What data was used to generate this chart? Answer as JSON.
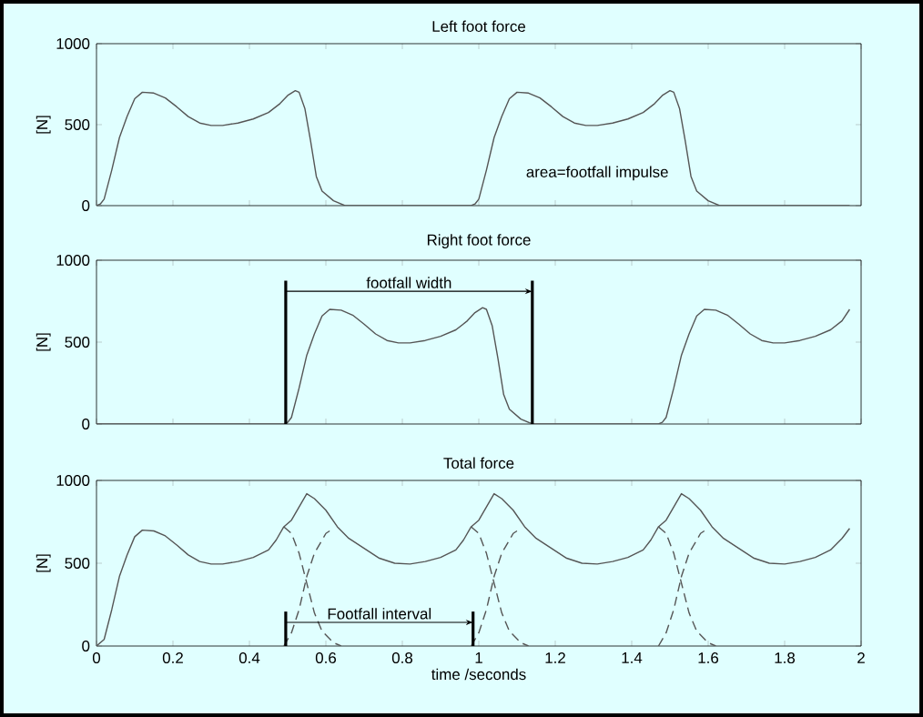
{
  "chart_data": [
    {
      "type": "line",
      "title": "Left foot force",
      "ylabel": "[N]",
      "xlim": [
        0,
        2
      ],
      "xticks": [
        0,
        0.2,
        0.4,
        0.6,
        0.8,
        1,
        1.2,
        1.4,
        1.6,
        1.8,
        2
      ],
      "ylim": [
        0,
        1000
      ],
      "yticks": [
        0,
        500,
        1000
      ],
      "tick_labels": "y",
      "grid": false,
      "annotations": [
        "area=footfall impulse"
      ],
      "series": [
        {
          "color": "#555555",
          "line_style": "solid",
          "x": [
            0,
            0.01,
            0.02,
            0.04,
            0.06,
            0.08,
            0.1,
            0.12,
            0.15,
            0.18,
            0.21,
            0.24,
            0.27,
            0.3,
            0.33,
            0.37,
            0.41,
            0.45,
            0.48,
            0.5,
            0.52,
            0.53,
            0.545,
            0.56,
            0.575,
            0.59,
            0.62,
            0.65,
            0.98,
            0.99,
            1.0,
            1.02,
            1.04,
            1.06,
            1.08,
            1.1,
            1.13,
            1.16,
            1.19,
            1.22,
            1.25,
            1.28,
            1.31,
            1.35,
            1.39,
            1.43,
            1.46,
            1.48,
            1.5,
            1.51,
            1.525,
            1.54,
            1.555,
            1.57,
            1.6,
            1.63,
            1.97
          ],
          "values": [
            0,
            10,
            40,
            220,
            420,
            550,
            660,
            700,
            695,
            665,
            610,
            550,
            510,
            495,
            495,
            510,
            535,
            575,
            630,
            680,
            710,
            700,
            600,
            400,
            180,
            90,
            30,
            0,
            0,
            10,
            40,
            220,
            420,
            550,
            660,
            700,
            695,
            665,
            610,
            550,
            510,
            495,
            495,
            510,
            535,
            575,
            630,
            680,
            710,
            700,
            600,
            400,
            180,
            90,
            30,
            0,
            0
          ]
        }
      ]
    },
    {
      "type": "line",
      "title": "Right foot force",
      "ylabel": "[N]",
      "xlim": [
        0,
        2
      ],
      "xticks": [
        0,
        0.2,
        0.4,
        0.6,
        0.8,
        1,
        1.2,
        1.4,
        1.6,
        1.8,
        2
      ],
      "ylim": [
        0,
        1000
      ],
      "yticks": [
        0,
        500,
        1000
      ],
      "tick_labels": "y",
      "grid": false,
      "annotations": [
        "footfall width"
      ],
      "ref_lines": [
        {
          "axis": "x",
          "value": 0.495,
          "color": "#000000"
        },
        {
          "axis": "x",
          "value": 1.14,
          "color": "#000000"
        }
      ],
      "series": [
        {
          "color": "#555555",
          "line_style": "solid",
          "x": [
            0,
            0.49,
            0.5,
            0.51,
            0.53,
            0.55,
            0.57,
            0.59,
            0.61,
            0.64,
            0.67,
            0.7,
            0.73,
            0.76,
            0.79,
            0.82,
            0.86,
            0.9,
            0.94,
            0.97,
            0.99,
            1.01,
            1.02,
            1.035,
            1.05,
            1.065,
            1.08,
            1.11,
            1.14,
            1.47,
            1.48,
            1.49,
            1.51,
            1.53,
            1.55,
            1.57,
            1.59,
            1.62,
            1.65,
            1.68,
            1.71,
            1.74,
            1.77,
            1.8,
            1.84,
            1.88,
            1.92,
            1.95,
            1.97
          ],
          "values": [
            0,
            0,
            10,
            40,
            220,
            420,
            550,
            660,
            700,
            695,
            665,
            610,
            550,
            510,
            495,
            495,
            510,
            535,
            575,
            630,
            680,
            710,
            700,
            600,
            400,
            180,
            90,
            30,
            0,
            0,
            10,
            40,
            220,
            420,
            550,
            660,
            700,
            695,
            665,
            610,
            550,
            510,
            495,
            495,
            510,
            535,
            575,
            630,
            700
          ]
        }
      ]
    },
    {
      "type": "line",
      "title": "Total force",
      "xlabel": "time /seconds",
      "ylabel": "[N]",
      "xlim": [
        0,
        2
      ],
      "xticks": [
        0,
        0.2,
        0.4,
        0.6,
        0.8,
        1,
        1.2,
        1.4,
        1.6,
        1.8,
        2
      ],
      "ylim": [
        0,
        1000
      ],
      "yticks": [
        0,
        500,
        1000
      ],
      "grid": false,
      "annotations": [
        "Footfall interval"
      ],
      "ref_lines": [
        {
          "axis": "x",
          "value": 0.495,
          "color": "#000000"
        },
        {
          "axis": "x",
          "value": 0.985,
          "color": "#000000"
        }
      ],
      "series": [
        {
          "color": "#555555",
          "line_style": "solid",
          "x": [
            0,
            0.02,
            0.04,
            0.06,
            0.08,
            0.1,
            0.12,
            0.15,
            0.18,
            0.21,
            0.24,
            0.27,
            0.3,
            0.33,
            0.37,
            0.41,
            0.45,
            0.47,
            0.49,
            0.51,
            0.55,
            0.57,
            0.6,
            0.63,
            0.66,
            0.7,
            0.74,
            0.78,
            0.82,
            0.86,
            0.9,
            0.94,
            0.96,
            0.98,
            1.0,
            1.04,
            1.06,
            1.09,
            1.12,
            1.15,
            1.19,
            1.23,
            1.27,
            1.31,
            1.35,
            1.39,
            1.43,
            1.45,
            1.47,
            1.49,
            1.53,
            1.55,
            1.58,
            1.61,
            1.64,
            1.68,
            1.72,
            1.76,
            1.8,
            1.84,
            1.88,
            1.92,
            1.95,
            1.97
          ],
          "values": [
            0,
            40,
            220,
            420,
            550,
            660,
            700,
            695,
            665,
            610,
            550,
            510,
            495,
            495,
            510,
            535,
            580,
            640,
            720,
            760,
            920,
            890,
            820,
            720,
            650,
            590,
            530,
            500,
            495,
            510,
            535,
            580,
            640,
            720,
            760,
            920,
            890,
            820,
            720,
            650,
            590,
            530,
            500,
            495,
            510,
            535,
            580,
            640,
            720,
            760,
            920,
            890,
            820,
            720,
            650,
            590,
            530,
            500,
            495,
            510,
            535,
            580,
            650,
            710
          ]
        },
        {
          "color": "#555555",
          "line_style": "dashed",
          "x": [
            0.49,
            0.51,
            0.53,
            0.55,
            0.57,
            0.59,
            0.62,
            0.64,
            0.8,
            0.98,
            1.0,
            1.02,
            1.04,
            1.06,
            1.08,
            1.11,
            1.13,
            1.3,
            1.47,
            1.49,
            1.51,
            1.53,
            1.55,
            1.57,
            1.6,
            1.62
          ],
          "values": [
            720,
            680,
            560,
            380,
            200,
            90,
            20,
            0,
            null,
            720,
            680,
            560,
            380,
            200,
            90,
            20,
            0,
            null,
            720,
            680,
            560,
            380,
            200,
            90,
            20,
            0
          ]
        },
        {
          "color": "#555555",
          "line_style": "dashed",
          "x": [
            0.49,
            0.51,
            0.53,
            0.55,
            0.57,
            0.6,
            0.62,
            0.8,
            0.98,
            1.0,
            1.02,
            1.04,
            1.06,
            1.09,
            1.11,
            1.3,
            1.47,
            1.49,
            1.51,
            1.53,
            1.55,
            1.58,
            1.6
          ],
          "values": [
            0,
            80,
            220,
            420,
            560,
            680,
            710,
            null,
            0,
            80,
            220,
            420,
            560,
            680,
            710,
            null,
            0,
            80,
            220,
            420,
            560,
            680,
            710
          ]
        }
      ]
    }
  ]
}
